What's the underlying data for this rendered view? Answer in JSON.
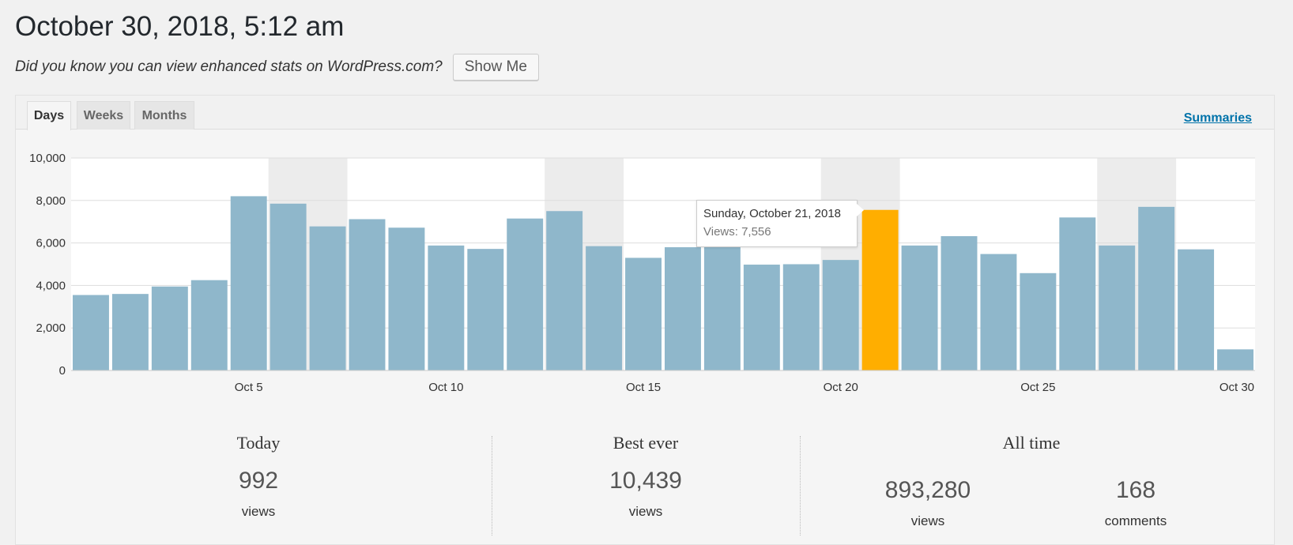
{
  "page": {
    "title": "October 30, 2018, 5:12 am",
    "promo_text": "Did you know you can view enhanced stats on WordPress.com?",
    "show_me_label": "Show Me"
  },
  "tabs": [
    {
      "label": "Days",
      "active": true
    },
    {
      "label": "Weeks",
      "active": false
    },
    {
      "label": "Months",
      "active": false
    }
  ],
  "summaries_label": "Summaries",
  "colors": {
    "bar": "#8fb7cb",
    "highlight": "#ffae00",
    "weekend_band": "#ececec"
  },
  "chart_data": {
    "type": "bar",
    "x": [
      "Oct 1",
      "Oct 2",
      "Oct 3",
      "Oct 4",
      "Oct 5",
      "Oct 6",
      "Oct 7",
      "Oct 8",
      "Oct 9",
      "Oct 10",
      "Oct 11",
      "Oct 12",
      "Oct 13",
      "Oct 14",
      "Oct 15",
      "Oct 16",
      "Oct 17",
      "Oct 18",
      "Oct 19",
      "Oct 20",
      "Oct 21",
      "Oct 22",
      "Oct 23",
      "Oct 24",
      "Oct 25",
      "Oct 26",
      "Oct 27",
      "Oct 28",
      "Oct 29",
      "Oct 30"
    ],
    "values": [
      3550,
      3600,
      3950,
      4250,
      8200,
      7850,
      6780,
      7120,
      6720,
      5880,
      5720,
      7150,
      7500,
      5850,
      5300,
      5800,
      5800,
      4980,
      5000,
      5200,
      7556,
      5880,
      6320,
      5480,
      4580,
      7200,
      5880,
      7700,
      5700,
      992
    ],
    "x_tick_labels": [
      "Oct 5",
      "Oct 10",
      "Oct 15",
      "Oct 20",
      "Oct 25",
      "Oct 30"
    ],
    "y_tick_labels": [
      "0",
      "2,000",
      "4,000",
      "6,000",
      "8,000",
      "10,000"
    ],
    "ylim": [
      0,
      10000
    ],
    "highlight_index": 20,
    "weekend_bands": [
      [
        "Oct 6",
        "Oct 7"
      ],
      [
        "Oct 13",
        "Oct 14"
      ],
      [
        "Oct 20",
        "Oct 21"
      ],
      [
        "Oct 27",
        "Oct 28"
      ]
    ],
    "grid": true
  },
  "tooltip": {
    "title": "Sunday, October 21, 2018",
    "views": "Views: 7,556"
  },
  "stats": {
    "today": {
      "heading": "Today",
      "value": "992",
      "unit": "views"
    },
    "best_ever": {
      "heading": "Best ever",
      "value": "10,439",
      "unit": "views"
    },
    "all_time": {
      "heading": "All time",
      "views_value": "893,280",
      "views_unit": "views",
      "comments_value": "168",
      "comments_unit": "comments"
    }
  }
}
